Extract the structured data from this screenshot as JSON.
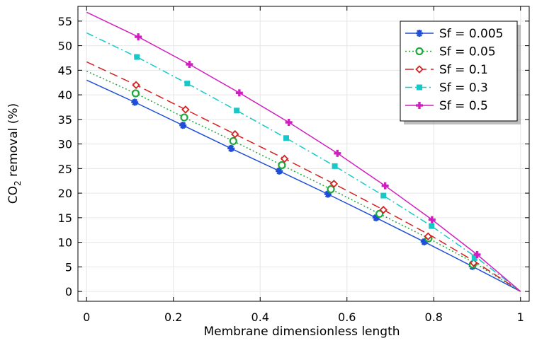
{
  "chart_data": {
    "type": "line",
    "title": "",
    "xlabel": "Membrane dimensionless length",
    "ylabel_main": "CO",
    "ylabel_sub": "2",
    "ylabel_rest": " removal (%)",
    "xlim": [
      -0.02,
      1.02
    ],
    "ylim": [
      -2,
      58
    ],
    "xticks": [
      0,
      0.2,
      0.4,
      0.6,
      0.8,
      1
    ],
    "xtick_labels": [
      "0",
      "0.2",
      "0.4",
      "0.6",
      "0.8",
      "1"
    ],
    "yticks": [
      0,
      5,
      10,
      15,
      20,
      25,
      30,
      35,
      40,
      45,
      50,
      55
    ],
    "ytick_labels": [
      "0",
      "5",
      "10",
      "15",
      "20",
      "25",
      "30",
      "35",
      "40",
      "45",
      "50",
      "55"
    ],
    "grid": true,
    "legend_position": "top-right",
    "series": [
      {
        "name": "Sf = 0.005",
        "color": "#1f4fd6",
        "dash": "solid",
        "marker": "asterisk",
        "x": [
          0,
          0.111,
          0.222,
          0.333,
          0.444,
          0.556,
          0.667,
          0.778,
          0.889,
          1.0
        ],
        "y": [
          43.0,
          38.5,
          33.8,
          29.1,
          24.5,
          19.8,
          15.0,
          10.1,
          5.1,
          0
        ],
        "markers_x": [
          0.111,
          0.222,
          0.333,
          0.444,
          0.556,
          0.667,
          0.778,
          0.889
        ],
        "markers_y": [
          38.5,
          33.8,
          29.1,
          24.5,
          19.8,
          15.0,
          10.1,
          5.1
        ]
      },
      {
        "name": "Sf = 0.05",
        "color": "#1fa83c",
        "dash": "dotted",
        "marker": "circle",
        "x": [
          0,
          0.113,
          0.225,
          0.338,
          0.45,
          0.563,
          0.675,
          0.788,
          0.9,
          1.0
        ],
        "y": [
          44.8,
          40.3,
          35.4,
          30.6,
          25.7,
          20.8,
          15.8,
          10.8,
          5.5,
          0
        ],
        "markers_x": [
          0.113,
          0.225,
          0.338,
          0.45,
          0.563,
          0.675,
          0.788,
          0.89
        ],
        "markers_y": [
          40.3,
          35.4,
          30.6,
          25.7,
          20.8,
          15.8,
          10.8,
          5.5
        ]
      },
      {
        "name": "Sf = 0.1",
        "color": "#d42020",
        "dash": "longdash",
        "marker": "diamond",
        "x": [
          0,
          0.114,
          0.228,
          0.342,
          0.456,
          0.57,
          0.684,
          0.797,
          0.9,
          1.0
        ],
        "y": [
          46.7,
          42.0,
          37.0,
          32.0,
          27.0,
          21.9,
          16.6,
          11.2,
          5.8,
          0
        ],
        "markers_x": [
          0.114,
          0.228,
          0.342,
          0.456,
          0.57,
          0.684,
          0.787,
          0.892
        ],
        "markers_y": [
          42.0,
          37.0,
          32.0,
          27.0,
          21.9,
          16.6,
          11.2,
          5.8
        ]
      },
      {
        "name": "Sf = 0.3",
        "color": "#17c8c8",
        "dash": "dashdot",
        "marker": "square",
        "x": [
          0,
          0.116,
          0.232,
          0.346,
          0.46,
          0.572,
          0.684,
          0.795,
          0.9,
          1.0
        ],
        "y": [
          52.6,
          47.7,
          42.3,
          36.8,
          31.2,
          25.5,
          19.5,
          13.3,
          6.8,
          0
        ],
        "markers_x": [
          0.116,
          0.232,
          0.346,
          0.46,
          0.572,
          0.684,
          0.795,
          0.894
        ],
        "markers_y": [
          47.7,
          42.3,
          36.8,
          31.2,
          25.5,
          19.5,
          13.3,
          6.8
        ]
      },
      {
        "name": "Sf = 0.5",
        "color": "#d01fc0",
        "dash": "solid",
        "marker": "plus",
        "x": [
          0,
          0.119,
          0.237,
          0.352,
          0.466,
          0.578,
          0.688,
          0.796,
          0.9,
          1.0
        ],
        "y": [
          56.8,
          51.8,
          46.2,
          40.4,
          34.4,
          28.1,
          21.5,
          14.6,
          7.5,
          0
        ],
        "markers_x": [
          0.119,
          0.237,
          0.352,
          0.466,
          0.578,
          0.688,
          0.796,
          0.9
        ],
        "markers_y": [
          51.8,
          46.2,
          40.4,
          34.4,
          28.1,
          21.5,
          14.6,
          7.5
        ]
      }
    ]
  }
}
